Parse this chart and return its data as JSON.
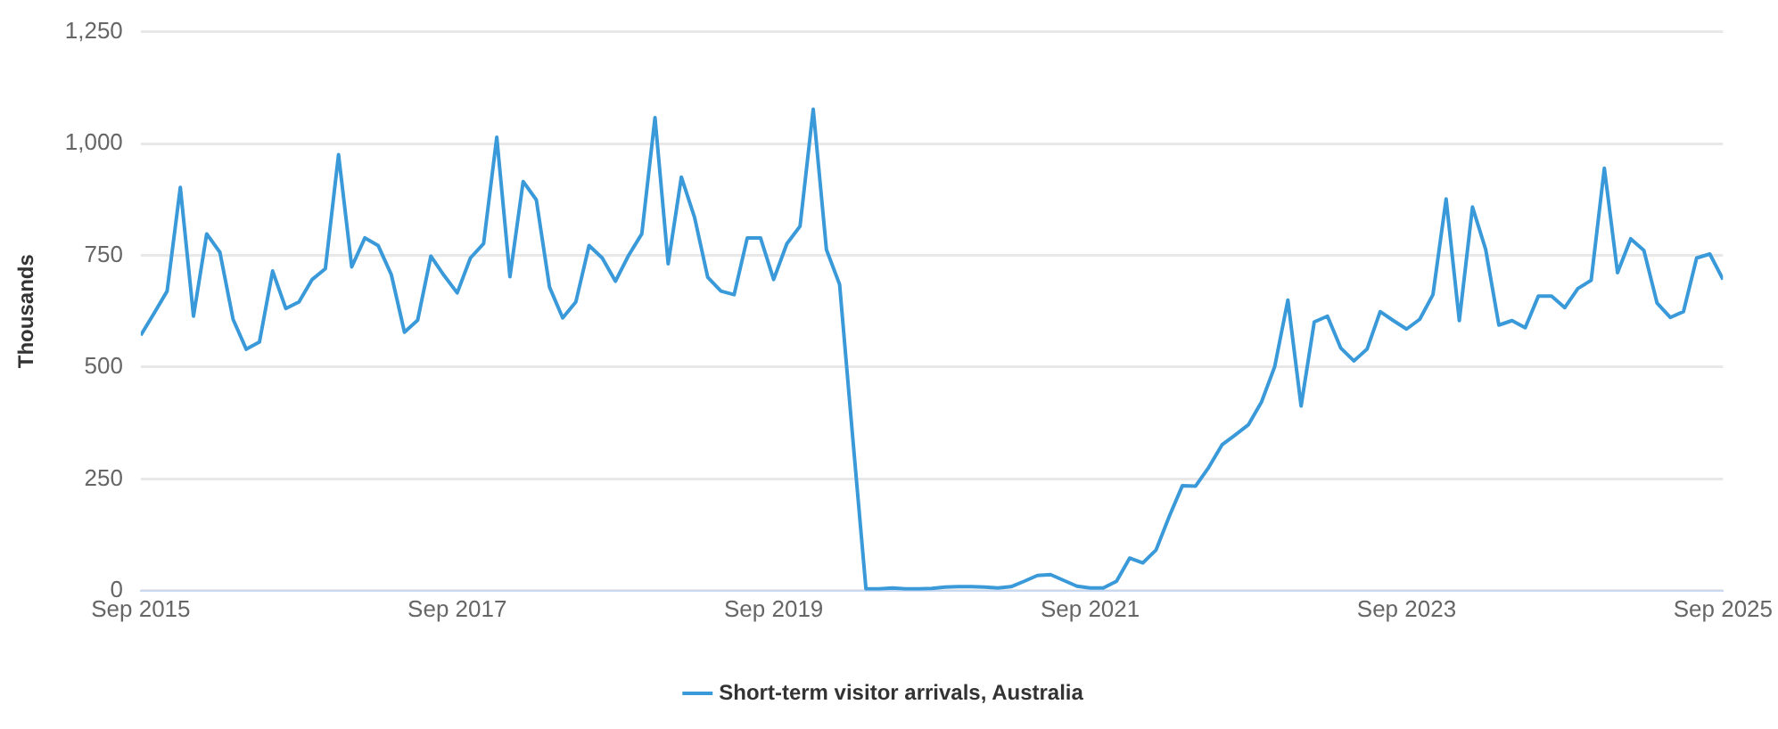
{
  "chart_data": {
    "type": "line",
    "ylabel": "Thousands",
    "xlim": [
      "2015-09",
      "2025-09"
    ],
    "xticks": [
      {
        "value": "2015-09",
        "label": "Sep 2015"
      },
      {
        "value": "2017-09",
        "label": "Sep 2017"
      },
      {
        "value": "2019-09",
        "label": "Sep 2019"
      },
      {
        "value": "2021-09",
        "label": "Sep 2021"
      },
      {
        "value": "2023-09",
        "label": "Sep 2023"
      },
      {
        "value": "2025-09",
        "label": "Sep 2025"
      }
    ],
    "ylim": [
      0,
      1250
    ],
    "yticks": [
      0,
      {
        "value": 250,
        "label": "250"
      },
      {
        "value": 500,
        "label": "500"
      },
      {
        "value": 750,
        "label": "750"
      },
      {
        "value": 1000,
        "label": "1,000"
      },
      {
        "value": 1250,
        "label": "1,250"
      }
    ],
    "grid": "y",
    "legend": "bottom",
    "marker": "none",
    "line_style": "solid",
    "x": [
      "2015-09",
      "2015-10",
      "2015-11",
      "2015-12",
      "2016-01",
      "2016-02",
      "2016-03",
      "2016-04",
      "2016-05",
      "2016-06",
      "2016-07",
      "2016-08",
      "2016-09",
      "2016-10",
      "2016-11",
      "2016-12",
      "2017-01",
      "2017-02",
      "2017-03",
      "2017-04",
      "2017-05",
      "2017-06",
      "2017-07",
      "2017-08",
      "2017-09",
      "2017-10",
      "2017-11",
      "2017-12",
      "2018-01",
      "2018-02",
      "2018-03",
      "2018-04",
      "2018-05",
      "2018-06",
      "2018-07",
      "2018-08",
      "2018-09",
      "2018-10",
      "2018-11",
      "2018-12",
      "2019-01",
      "2019-02",
      "2019-03",
      "2019-04",
      "2019-05",
      "2019-06",
      "2019-07",
      "2019-08",
      "2019-09",
      "2019-10",
      "2019-11",
      "2019-12",
      "2020-01",
      "2020-02",
      "2020-03",
      "2020-04",
      "2020-05",
      "2020-06",
      "2020-07",
      "2020-08",
      "2020-09",
      "2020-10",
      "2020-11",
      "2020-12",
      "2021-01",
      "2021-02",
      "2021-03",
      "2021-04",
      "2021-05",
      "2021-06",
      "2021-07",
      "2021-08",
      "2021-09",
      "2021-10",
      "2021-11",
      "2021-12",
      "2022-01",
      "2022-02",
      "2022-03",
      "2022-04",
      "2022-05",
      "2022-06",
      "2022-07",
      "2022-08",
      "2022-09",
      "2022-10",
      "2022-11",
      "2022-12",
      "2023-01",
      "2023-02",
      "2023-03",
      "2023-04",
      "2023-05",
      "2023-06",
      "2023-07",
      "2023-08",
      "2023-09",
      "2023-10",
      "2023-11",
      "2023-12",
      "2024-01",
      "2024-02",
      "2024-03",
      "2024-04",
      "2024-05",
      "2024-06",
      "2024-07",
      "2024-08",
      "2024-09",
      "2024-10",
      "2024-11",
      "2024-12",
      "2025-01",
      "2025-02",
      "2025-03",
      "2025-04",
      "2025-05",
      "2025-06",
      "2025-07",
      "2025-08",
      "2025-09"
    ],
    "series": [
      {
        "name": "Short-term visitor arrivals, Australia",
        "color": "#3a9ad9",
        "values": [
          571,
          620,
          670,
          902,
          614,
          798,
          757,
          607,
          540,
          556,
          715,
          631,
          646,
          696,
          720,
          975,
          724,
          789,
          772,
          707,
          578,
          605,
          748,
          705,
          666,
          744,
          776,
          1014,
          702,
          915,
          874,
          679,
          610,
          646,
          772,
          744,
          692,
          750,
          798,
          1058,
          731,
          925,
          835,
          701,
          670,
          662,
          789,
          789,
          696,
          776,
          815,
          1077,
          763,
          685,
          341,
          4,
          4,
          6,
          4,
          4,
          5,
          8,
          9,
          9,
          8,
          6,
          9,
          21,
          34,
          36,
          23,
          10,
          6,
          6,
          21,
          73,
          62,
          91,
          166,
          235,
          234,
          276,
          326,
          348,
          371,
          422,
          501,
          650,
          413,
          601,
          614,
          543,
          514,
          540,
          624,
          604,
          585,
          607,
          662,
          876,
          604,
          858,
          763,
          594,
          604,
          588,
          659,
          659,
          633,
          676,
          694,
          945,
          711,
          787,
          761,
          643,
          611,
          624,
          744,
          753,
          696
        ]
      }
    ]
  }
}
